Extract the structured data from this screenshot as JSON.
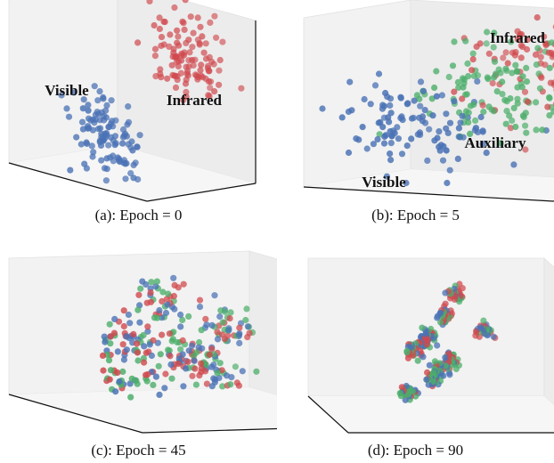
{
  "chart_data": [
    {
      "type": "scatter",
      "projection": "3d",
      "caption": "(a): Epoch = 0",
      "grid": false,
      "colors": {
        "Visible": "#4a72b5",
        "Infrared": "#d0494e"
      },
      "annotations": [
        "Visible",
        "Infrared"
      ],
      "clusters": [
        {
          "group": "Visible",
          "center": [
            0.3,
            0.5,
            0.2
          ],
          "spread": 0.12,
          "count": 110
        },
        {
          "group": "Infrared",
          "center": [
            0.75,
            0.7,
            0.75
          ],
          "spread": 0.12,
          "count": 110
        }
      ]
    },
    {
      "type": "scatter",
      "projection": "3d",
      "caption": "(b): Epoch = 5",
      "grid": false,
      "colors": {
        "Visible": "#4a72b5",
        "Infrared": "#d0494e",
        "Auxiliary": "#4cae6a"
      },
      "annotations": [
        "Infrared",
        "Auxiliary",
        "Visible"
      ],
      "clusters": [
        {
          "group": "Infrared",
          "center": [
            0.72,
            0.65,
            0.72
          ],
          "spread": 0.15,
          "count": 110
        },
        {
          "group": "Auxiliary",
          "center": [
            0.55,
            0.5,
            0.55
          ],
          "spread": 0.15,
          "count": 110
        },
        {
          "group": "Visible",
          "center": [
            0.3,
            0.35,
            0.35
          ],
          "spread": 0.15,
          "count": 110
        }
      ]
    },
    {
      "type": "scatter",
      "projection": "3d",
      "caption": "(c): Epoch = 45",
      "grid": false,
      "colors": {
        "Visible": "#4a72b5",
        "Infrared": "#d0494e",
        "Auxiliary": "#4cae6a"
      },
      "annotations": [],
      "clusters": [
        {
          "group": "Mixed",
          "center": [
            0.35,
            0.45,
            0.75
          ],
          "spread": 0.08,
          "count": 45
        },
        {
          "group": "Mixed",
          "center": [
            0.65,
            0.55,
            0.65
          ],
          "spread": 0.08,
          "count": 45
        },
        {
          "group": "Mixed",
          "center": [
            0.2,
            0.4,
            0.45
          ],
          "spread": 0.08,
          "count": 45
        },
        {
          "group": "Mixed",
          "center": [
            0.45,
            0.5,
            0.4
          ],
          "spread": 0.09,
          "count": 55
        },
        {
          "group": "Mixed",
          "center": [
            0.7,
            0.45,
            0.35
          ],
          "spread": 0.08,
          "count": 45
        },
        {
          "group": "Mixed",
          "center": [
            0.35,
            0.3,
            0.25
          ],
          "spread": 0.08,
          "count": 45
        }
      ]
    },
    {
      "type": "scatter",
      "projection": "3d",
      "caption": "(d): Epoch = 90",
      "grid": false,
      "colors": {
        "Visible": "#4a72b5",
        "Infrared": "#d0494e",
        "Auxiliary": "#4cae6a"
      },
      "annotations": [],
      "clusters": [
        {
          "group": "Mixed",
          "center": [
            0.45,
            0.55,
            0.85
          ],
          "spread": 0.03,
          "count": 30
        },
        {
          "group": "Mixed",
          "center": [
            0.45,
            0.5,
            0.7
          ],
          "spread": 0.03,
          "count": 30
        },
        {
          "group": "Mixed",
          "center": [
            0.85,
            0.6,
            0.7
          ],
          "spread": 0.03,
          "count": 30
        },
        {
          "group": "Mixed",
          "center": [
            0.4,
            0.45,
            0.55
          ],
          "spread": 0.03,
          "count": 30
        },
        {
          "group": "Mixed",
          "center": [
            0.2,
            0.45,
            0.45
          ],
          "spread": 0.03,
          "count": 30
        },
        {
          "group": "Mixed",
          "center": [
            0.3,
            0.4,
            0.4
          ],
          "spread": 0.03,
          "count": 30
        },
        {
          "group": "Mixed",
          "center": [
            0.6,
            0.45,
            0.35
          ],
          "spread": 0.03,
          "count": 30
        },
        {
          "group": "Mixed",
          "center": [
            0.72,
            0.48,
            0.45
          ],
          "spread": 0.03,
          "count": 30
        },
        {
          "group": "Mixed",
          "center": [
            0.8,
            0.4,
            0.35
          ],
          "spread": 0.03,
          "count": 30
        },
        {
          "group": "Mixed",
          "center": [
            0.45,
            0.35,
            0.15
          ],
          "spread": 0.03,
          "count": 30
        }
      ]
    }
  ]
}
